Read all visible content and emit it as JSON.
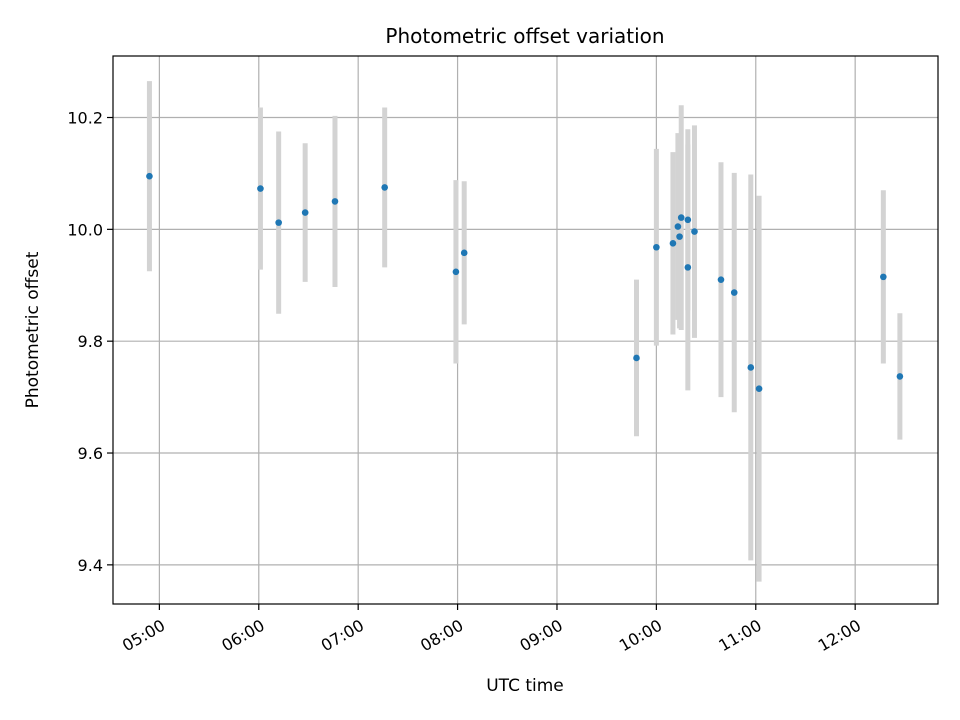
{
  "chart_data": {
    "type": "scatter",
    "title": "Photometric offset variation",
    "xlabel": "UTC time",
    "ylabel": "Photometric offset",
    "x_axis": "time",
    "xlim": [
      "04:32",
      "12:50"
    ],
    "ylim": [
      9.33,
      10.31
    ],
    "x_ticks": [
      "05:00",
      "06:00",
      "07:00",
      "08:00",
      "09:00",
      "10:00",
      "11:00",
      "12:00"
    ],
    "y_ticks": [
      9.4,
      9.6,
      9.8,
      10.0,
      10.2
    ],
    "grid": true,
    "colors": {
      "points": "#1f77b4",
      "errorbars": "#d3d3d3",
      "grid": "#b0b0b0"
    },
    "points": [
      {
        "x": "04:54",
        "y": 10.095,
        "err": 0.17
      },
      {
        "x": "06:01",
        "y": 10.073,
        "err": 0.145
      },
      {
        "x": "06:12",
        "y": 10.012,
        "err": 0.163
      },
      {
        "x": "06:28",
        "y": 10.03,
        "err": 0.124
      },
      {
        "x": "06:46",
        "y": 10.05,
        "err": 0.153
      },
      {
        "x": "07:16",
        "y": 10.075,
        "err": 0.143
      },
      {
        "x": "07:59",
        "y": 9.924,
        "err": 0.164
      },
      {
        "x": "08:04",
        "y": 9.958,
        "err": 0.128
      },
      {
        "x": "09:48",
        "y": 9.77,
        "err": 0.14
      },
      {
        "x": "10:00",
        "y": 9.968,
        "err": 0.176
      },
      {
        "x": "10:10",
        "y": 9.975,
        "err": 0.163
      },
      {
        "x": "10:13",
        "y": 10.005,
        "err": 0.167
      },
      {
        "x": "10:14",
        "y": 9.987,
        "err": 0.164
      },
      {
        "x": "10:15",
        "y": 10.021,
        "err": 0.201
      },
      {
        "x": "10:19",
        "y": 9.932,
        "err": 0.22
      },
      {
        "x": "10:19",
        "y": 10.017,
        "err": 0.162
      },
      {
        "x": "10:23",
        "y": 9.996,
        "err": 0.19
      },
      {
        "x": "10:39",
        "y": 9.91,
        "err": 0.21
      },
      {
        "x": "10:47",
        "y": 9.887,
        "err": 0.214
      },
      {
        "x": "10:57",
        "y": 9.753,
        "err": 0.345
      },
      {
        "x": "11:02",
        "y": 9.715,
        "err": 0.345
      },
      {
        "x": "12:17",
        "y": 9.915,
        "err": 0.155
      },
      {
        "x": "12:27",
        "y": 9.737,
        "err": 0.113
      }
    ]
  }
}
